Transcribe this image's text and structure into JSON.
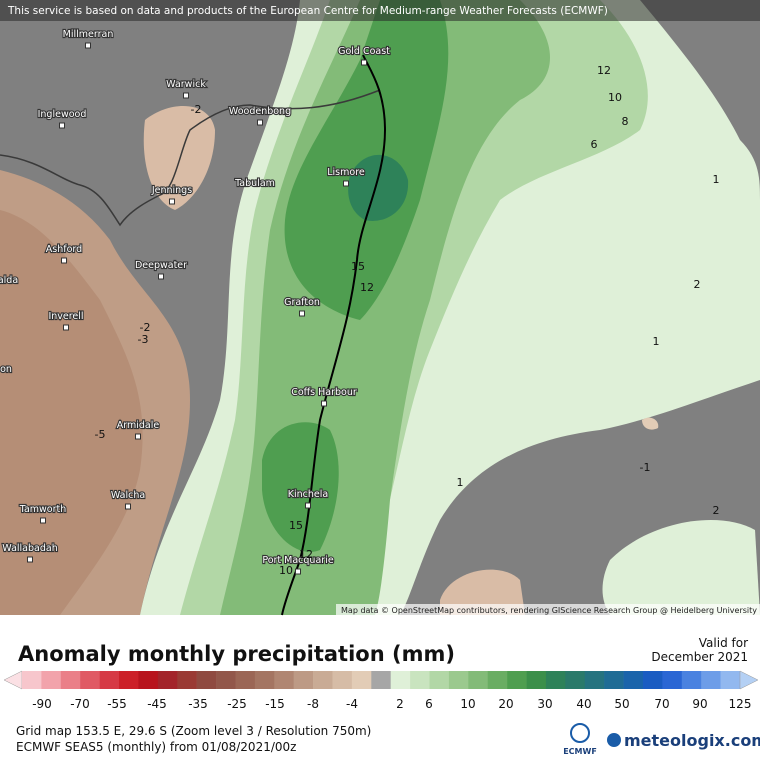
{
  "notice": "This service is based on data and products of the European Centre for Medium-range Weather Forecasts (ECMWF)",
  "places": [
    "Millmerran",
    "Warwick",
    "Inglewood",
    "Woodenbong",
    "Gold Coast",
    "Lismore",
    "Jennings",
    "Tabulam",
    "Ashford",
    "Deepwater",
    "Grafton",
    "Inverell",
    "alda",
    "on",
    "Armidale",
    "Coffs Harbour",
    "Walcha",
    "Kinchela",
    "Tamworth",
    "Port Macquarie",
    "Wallabadah"
  ],
  "contours": [
    12,
    10,
    8,
    6,
    1,
    2,
    1,
    -1,
    1,
    2,
    15,
    12,
    -2,
    -2,
    -3,
    -5,
    15,
    12,
    10
  ],
  "attribution": "Map data © OpenStreetMap contributors, rendering GIScience Research Group @ Heidelberg University",
  "legend": {
    "title": "Anomaly monthly precipitation (mm)",
    "valid_for": "Valid for",
    "valid_date": "December 2021",
    "labels": [
      -90,
      -70,
      -55,
      -45,
      -35,
      -25,
      -15,
      -8,
      -4,
      2,
      6,
      10,
      20,
      30,
      40,
      50,
      70,
      90,
      125
    ],
    "colors": [
      "#f7c6cc",
      "#f2a3ab",
      "#ea7f88",
      "#e05a64",
      "#d63a45",
      "#cc2028",
      "#b8141d",
      "#a3242a",
      "#9a3a34",
      "#8f4a40",
      "#92574a",
      "#9b6655",
      "#a47562",
      "#b08672",
      "#bd9a85",
      "#c9ab95",
      "#d6bca6",
      "#e2ccb6",
      "#a6a6a6",
      "#dff0d8",
      "#c9e4bf",
      "#b2d7a6",
      "#9bc98e",
      "#83bb78",
      "#6aad63",
      "#4f9e50",
      "#3b8f4a",
      "#2e8259",
      "#2a7a6a",
      "#25737f",
      "#1f6c95",
      "#1a64ab",
      "#1a5cc2",
      "#2a66d4",
      "#4a82e0",
      "#6d9de8",
      "#92b8ef"
    ],
    "left_arrow": "#fbe0e4",
    "right_arrow": "#b4d0f4"
  },
  "grid_info": "Grid map 153.5 E, 29.6 S (Zoom level 3 / Resolution 750m)",
  "model_info": "ECMWF SEAS5 (monthly) from  01/08/2021/00z",
  "ecmwf": "ECMWF",
  "brand": "meteologix.com"
}
